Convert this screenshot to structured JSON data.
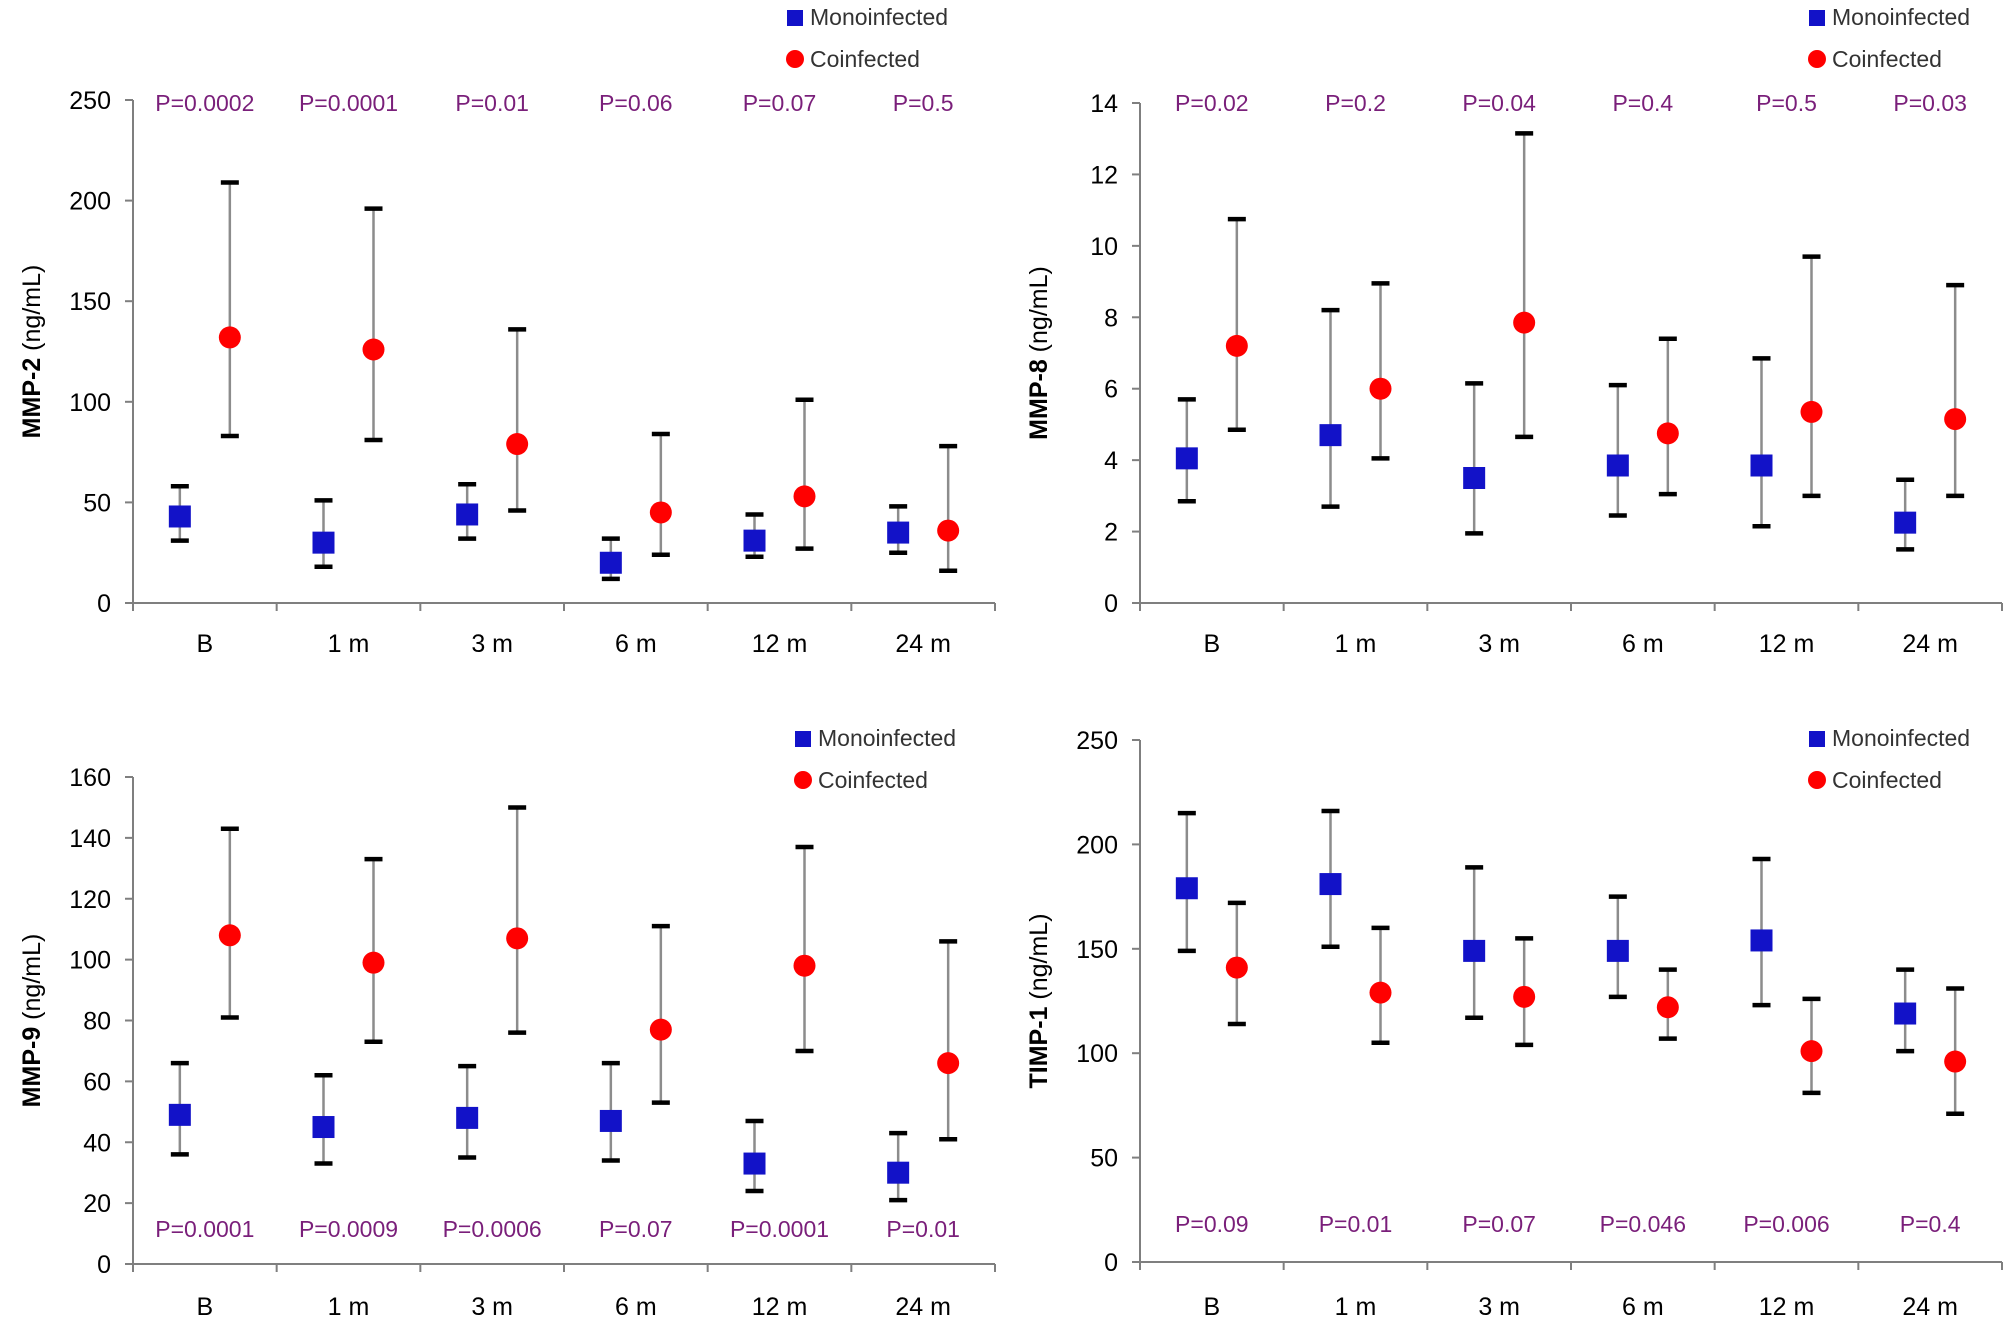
{
  "legend": {
    "mono": "Monoinfected",
    "co": "Coinfected"
  },
  "colors": {
    "mono": "#1212c8",
    "co": "#ff0000",
    "pvalue": "#7a1f7a",
    "axis": "#7f7f7f",
    "error": "#8c8c8c",
    "cap": "#000000"
  },
  "chart_data": [
    {
      "type": "scatter",
      "panel": "top-left",
      "ylabel_bold": "MMP-2",
      "ylabel_unit": " (ng/mL)",
      "categories": [
        "B",
        "1 m",
        "3 m",
        "6 m",
        "12 m",
        "24 m"
      ],
      "ylim": [
        0,
        250
      ],
      "yticks": [
        "0",
        "50",
        "100",
        "150",
        "200",
        "250"
      ],
      "pvalue_position": "top",
      "pvalues": [
        "P=0.0002",
        "P=0.0001",
        "P=0.01",
        "P=0.06",
        "P=0.07",
        "P=0.5"
      ],
      "series": [
        {
          "name": "Monoinfected",
          "values": [
            43,
            30,
            44,
            20,
            31,
            35
          ],
          "lower": [
            31,
            18,
            32,
            12,
            23,
            25
          ],
          "upper": [
            58,
            51,
            59,
            32,
            44,
            48
          ]
        },
        {
          "name": "Coinfected",
          "values": [
            132,
            126,
            79,
            45,
            53,
            36
          ],
          "lower": [
            83,
            81,
            46,
            24,
            27,
            16
          ],
          "upper": [
            209,
            196,
            136,
            84,
            101,
            78
          ]
        }
      ]
    },
    {
      "type": "scatter",
      "panel": "top-right",
      "ylabel_bold": "MMP-8",
      "ylabel_unit": " (ng/mL)",
      "categories": [
        "B",
        "1 m",
        "3 m",
        "6 m",
        "12 m",
        "24 m"
      ],
      "ylim": [
        0,
        14
      ],
      "yticks": [
        "0",
        "2",
        "4",
        "6",
        "8",
        "10",
        "12",
        "14"
      ],
      "pvalue_position": "top",
      "pvalues": [
        "P=0.02",
        "P=0.2",
        "P=0.04",
        "P=0.4",
        "P=0.5",
        "P=0.03"
      ],
      "series": [
        {
          "name": "Monoinfected",
          "values": [
            4.05,
            4.7,
            3.5,
            3.85,
            3.85,
            2.25
          ],
          "lower": [
            2.85,
            2.7,
            1.95,
            2.45,
            2.15,
            1.5
          ],
          "upper": [
            5.7,
            8.2,
            6.15,
            6.1,
            6.85,
            3.45
          ]
        },
        {
          "name": "Coinfected",
          "values": [
            7.2,
            6.0,
            7.85,
            4.75,
            5.35,
            5.15
          ],
          "lower": [
            4.85,
            4.05,
            4.65,
            3.05,
            3.0,
            3.0
          ],
          "upper": [
            10.75,
            8.95,
            13.15,
            7.4,
            9.7,
            8.9
          ]
        }
      ]
    },
    {
      "type": "scatter",
      "panel": "bottom-left",
      "ylabel_bold": "MMP-9",
      "ylabel_unit": " (ng/mL)",
      "categories": [
        "B",
        "1 m",
        "3 m",
        "6 m",
        "12 m",
        "24 m"
      ],
      "ylim": [
        0,
        160
      ],
      "yticks": [
        "0",
        "20",
        "40",
        "60",
        "80",
        "100",
        "120",
        "140",
        "160"
      ],
      "pvalue_position": "bottom",
      "pvalues": [
        "P=0.0001",
        "P=0.0009",
        "P=0.0006",
        "P=0.07",
        "P=0.0001",
        "P=0.01"
      ],
      "series": [
        {
          "name": "Monoinfected",
          "values": [
            49,
            45,
            48,
            47,
            33,
            30
          ],
          "lower": [
            36,
            33,
            35,
            34,
            24,
            21
          ],
          "upper": [
            66,
            62,
            65,
            66,
            47,
            43
          ]
        },
        {
          "name": "Coinfected",
          "values": [
            108,
            99,
            107,
            77,
            98,
            66
          ],
          "lower": [
            81,
            73,
            76,
            53,
            70,
            41
          ],
          "upper": [
            143,
            133,
            150,
            111,
            137,
            106
          ]
        }
      ]
    },
    {
      "type": "scatter",
      "panel": "bottom-right",
      "ylabel_bold": "TIMP-1",
      "ylabel_unit": " (ng/mL)",
      "categories": [
        "B",
        "1 m",
        "3 m",
        "6 m",
        "12 m",
        "24 m"
      ],
      "ylim": [
        0,
        250
      ],
      "yticks": [
        "0",
        "50",
        "100",
        "150",
        "200",
        "250"
      ],
      "pvalue_position": "bottom",
      "pvalues": [
        "P=0.09",
        "P=0.01",
        "P=0.07",
        "P=0.046",
        "P=0.006",
        "P=0.4"
      ],
      "series": [
        {
          "name": "Monoinfected",
          "values": [
            179,
            181,
            149,
            149,
            154,
            119
          ],
          "lower": [
            149,
            151,
            117,
            127,
            123,
            101
          ],
          "upper": [
            215,
            216,
            189,
            175,
            193,
            140
          ]
        },
        {
          "name": "Coinfected",
          "values": [
            141,
            129,
            127,
            122,
            101,
            96
          ],
          "lower": [
            114,
            105,
            104,
            107,
            81,
            71
          ],
          "upper": [
            172,
            160,
            155,
            140,
            126,
            131
          ]
        }
      ]
    }
  ]
}
